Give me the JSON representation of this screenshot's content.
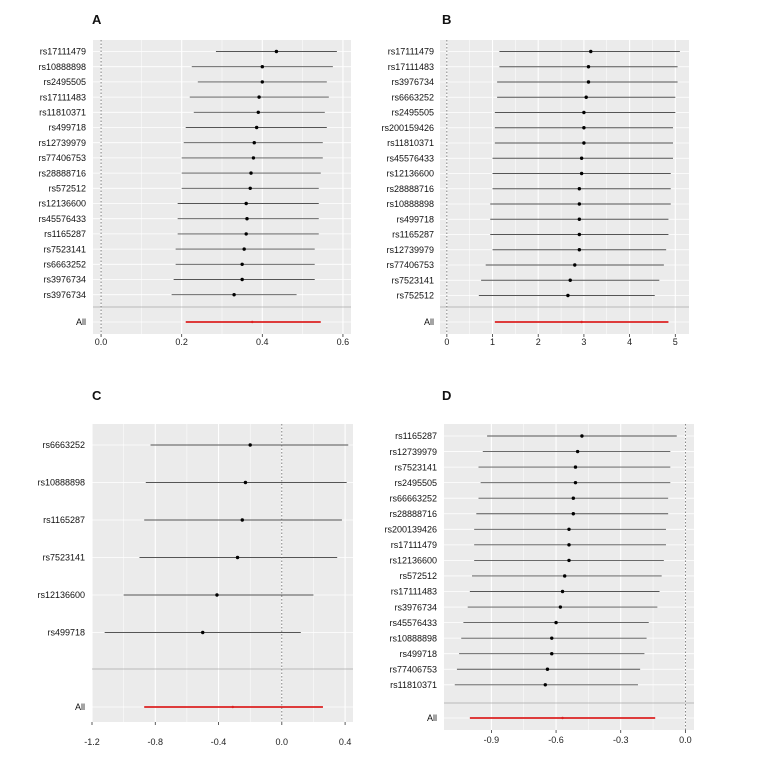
{
  "figure": {
    "title": ""
  },
  "chart_data": [
    {
      "panel": "A",
      "type": "forest",
      "xlim": [
        -0.02,
        0.62
      ],
      "xticks": [
        0.0,
        0.2,
        0.4,
        0.6
      ],
      "xtick_labels": [
        "0.0",
        "0.2",
        "0.4",
        "0.6"
      ],
      "null_line": 0.0,
      "grid": true,
      "rows": [
        {
          "label": "rs17111479",
          "est": 0.435,
          "lo": 0.285,
          "hi": 0.585
        },
        {
          "label": "rs10888898",
          "est": 0.4,
          "lo": 0.225,
          "hi": 0.575
        },
        {
          "label": "rs2495505",
          "est": 0.4,
          "lo": 0.24,
          "hi": 0.56
        },
        {
          "label": "rs17111483",
          "est": 0.392,
          "lo": 0.22,
          "hi": 0.565
        },
        {
          "label": "rs11810371",
          "est": 0.39,
          "lo": 0.23,
          "hi": 0.555
        },
        {
          "label": "rs499718",
          "est": 0.386,
          "lo": 0.21,
          "hi": 0.56
        },
        {
          "label": "rs12739979",
          "est": 0.38,
          "lo": 0.205,
          "hi": 0.55
        },
        {
          "label": "rs77406753",
          "est": 0.378,
          "lo": 0.2,
          "hi": 0.55
        },
        {
          "label": "rs28888716",
          "est": 0.372,
          "lo": 0.2,
          "hi": 0.545
        },
        {
          "label": "rs572512",
          "est": 0.37,
          "lo": 0.2,
          "hi": 0.54
        },
        {
          "label": "rs12136600",
          "est": 0.36,
          "lo": 0.19,
          "hi": 0.54
        },
        {
          "label": "rs45576433",
          "est": 0.362,
          "lo": 0.19,
          "hi": 0.54
        },
        {
          "label": "rs1165287",
          "est": 0.36,
          "lo": 0.19,
          "hi": 0.54
        },
        {
          "label": "rs7523141",
          "est": 0.355,
          "lo": 0.185,
          "hi": 0.53
        },
        {
          "label": "rs6663252",
          "est": 0.35,
          "lo": 0.185,
          "hi": 0.53
        },
        {
          "label": "rs3976734",
          "est": 0.35,
          "lo": 0.18,
          "hi": 0.53
        },
        {
          "label": "rs3976734",
          "est": 0.33,
          "lo": 0.175,
          "hi": 0.485
        }
      ],
      "overall": {
        "label": "All",
        "est": 0.375,
        "lo": 0.21,
        "hi": 0.545
      }
    },
    {
      "panel": "B",
      "type": "forest",
      "xlim": [
        -0.15,
        5.3
      ],
      "xticks": [
        0,
        1,
        2,
        3,
        4,
        5
      ],
      "xtick_labels": [
        "0",
        "1",
        "2",
        "3",
        "4",
        "5"
      ],
      "null_line": 0,
      "grid": true,
      "rows": [
        {
          "label": "rs17111479",
          "est": 3.15,
          "lo": 1.15,
          "hi": 5.1
        },
        {
          "label": "rs17111483",
          "est": 3.1,
          "lo": 1.15,
          "hi": 5.05
        },
        {
          "label": "rs3976734",
          "est": 3.1,
          "lo": 1.1,
          "hi": 5.05
        },
        {
          "label": "rs6663252",
          "est": 3.05,
          "lo": 1.1,
          "hi": 5.0
        },
        {
          "label": "rs2495505",
          "est": 3.0,
          "lo": 1.05,
          "hi": 5.0
        },
        {
          "label": "rs200159426",
          "est": 3.0,
          "lo": 1.05,
          "hi": 4.95
        },
        {
          "label": "rs11810371",
          "est": 3.0,
          "lo": 1.05,
          "hi": 4.95
        },
        {
          "label": "rs45576433",
          "est": 2.95,
          "lo": 1.0,
          "hi": 4.95
        },
        {
          "label": "rs12136600",
          "est": 2.95,
          "lo": 1.0,
          "hi": 4.9
        },
        {
          "label": "rs28888716",
          "est": 2.9,
          "lo": 1.0,
          "hi": 4.9
        },
        {
          "label": "rs10888898",
          "est": 2.9,
          "lo": 0.95,
          "hi": 4.9
        },
        {
          "label": "rs499718",
          "est": 2.9,
          "lo": 0.95,
          "hi": 4.85
        },
        {
          "label": "rs1165287",
          "est": 2.9,
          "lo": 0.95,
          "hi": 4.85
        },
        {
          "label": "rs12739979",
          "est": 2.9,
          "lo": 1.0,
          "hi": 4.8
        },
        {
          "label": "rs77406753",
          "est": 2.8,
          "lo": 0.85,
          "hi": 4.75
        },
        {
          "label": "rs7523141",
          "est": 2.7,
          "lo": 0.75,
          "hi": 4.65
        },
        {
          "label": "rs752512",
          "est": 2.65,
          "lo": 0.7,
          "hi": 4.55
        }
      ],
      "overall": {
        "label": "All",
        "est": 2.95,
        "lo": 1.05,
        "hi": 4.85
      }
    },
    {
      "panel": "C",
      "type": "forest",
      "xlim": [
        -1.2,
        0.45
      ],
      "xticks": [
        -1.2,
        -0.8,
        -0.4,
        0.0,
        0.4
      ],
      "xtick_labels": [
        "-1.2",
        "-0.8",
        "-0.4",
        "0.0",
        "0.4"
      ],
      "null_line": 0.0,
      "grid": true,
      "rows": [
        {
          "label": "rs6663252",
          "est": -0.2,
          "lo": -0.83,
          "hi": 0.42
        },
        {
          "label": "rs10888898",
          "est": -0.23,
          "lo": -0.86,
          "hi": 0.41
        },
        {
          "label": "rs1165287",
          "est": -0.25,
          "lo": -0.87,
          "hi": 0.38
        },
        {
          "label": "rs7523141",
          "est": -0.28,
          "lo": -0.9,
          "hi": 0.35
        },
        {
          "label": "rs12136600",
          "est": -0.41,
          "lo": -1.0,
          "hi": 0.2
        },
        {
          "label": "rs499718",
          "est": -0.5,
          "lo": -1.12,
          "hi": 0.12
        }
      ],
      "overall": {
        "label": "All",
        "est": -0.31,
        "lo": -0.87,
        "hi": 0.26
      }
    },
    {
      "panel": "D",
      "type": "forest",
      "xlim": [
        -1.12,
        0.04
      ],
      "xticks": [
        -0.9,
        -0.6,
        -0.3,
        0.0
      ],
      "xtick_labels": [
        "-0.9",
        "-0.6",
        "-0.3",
        "0.0"
      ],
      "null_line": 0.0,
      "grid": true,
      "rows": [
        {
          "label": "rs1165287",
          "est": -0.48,
          "lo": -0.92,
          "hi": -0.04
        },
        {
          "label": "rs12739979",
          "est": -0.5,
          "lo": -0.94,
          "hi": -0.07
        },
        {
          "label": "rs7523141",
          "est": -0.51,
          "lo": -0.96,
          "hi": -0.07
        },
        {
          "label": "rs2495505",
          "est": -0.51,
          "lo": -0.95,
          "hi": -0.07
        },
        {
          "label": "rs66663252",
          "est": -0.52,
          "lo": -0.96,
          "hi": -0.08
        },
        {
          "label": "rs28888716",
          "est": -0.52,
          "lo": -0.97,
          "hi": -0.08
        },
        {
          "label": "rs200139426",
          "est": -0.54,
          "lo": -0.98,
          "hi": -0.09
        },
        {
          "label": "rs17111479",
          "est": -0.54,
          "lo": -0.98,
          "hi": -0.09
        },
        {
          "label": "rs12136600",
          "est": -0.54,
          "lo": -0.98,
          "hi": -0.1
        },
        {
          "label": "rs572512",
          "est": -0.56,
          "lo": -0.99,
          "hi": -0.11
        },
        {
          "label": "rs17111483",
          "est": -0.57,
          "lo": -1.0,
          "hi": -0.12
        },
        {
          "label": "rs3976734",
          "est": -0.58,
          "lo": -1.01,
          "hi": -0.13
        },
        {
          "label": "rs45576433",
          "est": -0.6,
          "lo": -1.03,
          "hi": -0.17
        },
        {
          "label": "rs10888898",
          "est": -0.62,
          "lo": -1.04,
          "hi": -0.18
        },
        {
          "label": "rs499718",
          "est": -0.62,
          "lo": -1.05,
          "hi": -0.19
        },
        {
          "label": "rs77406753",
          "est": -0.64,
          "lo": -1.06,
          "hi": -0.21
        },
        {
          "label": "rs11810371",
          "est": -0.65,
          "lo": -1.07,
          "hi": -0.22
        }
      ],
      "overall": {
        "label": "All",
        "est": -0.57,
        "lo": -1.0,
        "hi": -0.14
      }
    }
  ],
  "colors": {
    "panel_bg": "#ebebeb",
    "grid": "#ffffff",
    "ci_line": "#555555",
    "point": "#000000",
    "overall_line": "#dd2222",
    "null_line": "#666666",
    "separator": "#aaaaaa"
  }
}
